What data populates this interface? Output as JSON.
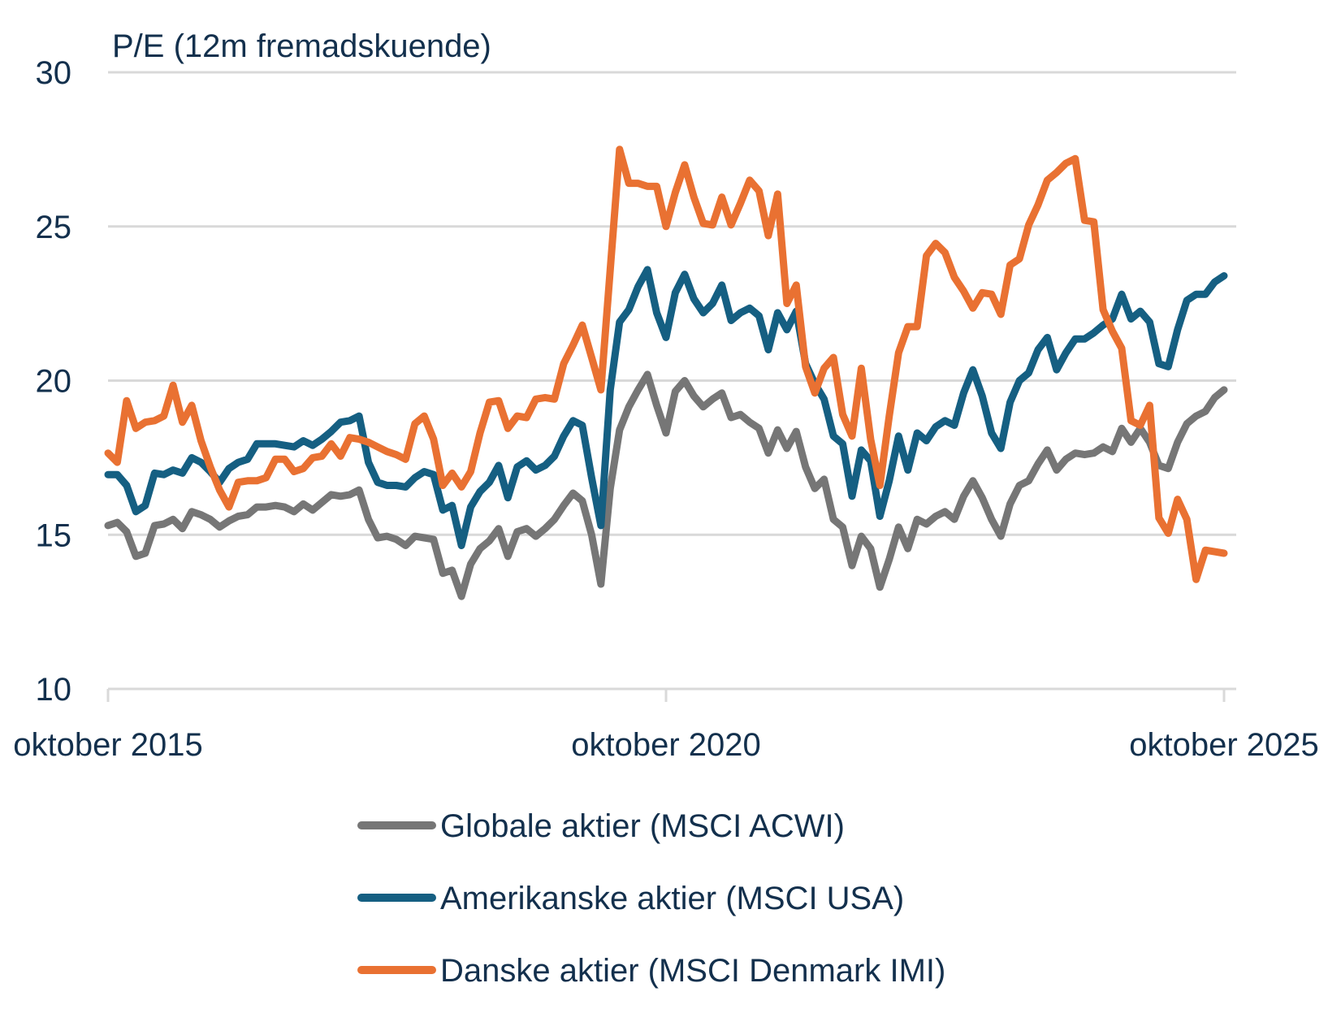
{
  "chart_data": {
    "type": "line",
    "title": "",
    "ylabel": "P/E (12m fremadskuende)",
    "xlabel": "",
    "ylim": [
      10,
      30
    ],
    "yticks": [
      10,
      15,
      20,
      25,
      30
    ],
    "ytick_labels": [
      "10",
      "15",
      "20",
      "25",
      "30"
    ],
    "x_start": "oktober 2015",
    "x_end": "oktober 2025",
    "x_frequency": "monthly",
    "xticks": [
      {
        "index": 0,
        "label": "oktober 2015"
      },
      {
        "index": 60,
        "label": "oktober 2020"
      },
      {
        "index": 120,
        "label": "oktober 2025"
      }
    ],
    "grid": "horizontal",
    "legend_position": "bottom",
    "series": [
      {
        "name": "Globale aktier (MSCI ACWI)",
        "color": "#767676",
        "values": [
          15.3,
          15.4,
          15.1,
          14.3,
          14.4,
          15.3,
          15.35,
          15.5,
          15.2,
          15.75,
          15.65,
          15.5,
          15.25,
          15.45,
          15.6,
          15.65,
          15.9,
          15.9,
          15.95,
          15.9,
          15.75,
          16.0,
          15.8,
          16.05,
          16.3,
          16.25,
          16.3,
          16.45,
          15.5,
          14.9,
          14.95,
          14.85,
          14.65,
          14.95,
          14.9,
          14.85,
          13.75,
          13.85,
          13.0,
          14.05,
          14.55,
          14.8,
          15.2,
          14.3,
          15.1,
          15.2,
          14.95,
          15.2,
          15.5,
          15.95,
          16.35,
          16.1,
          15.0,
          13.4,
          16.5,
          18.4,
          19.15,
          19.7,
          20.2,
          19.2,
          18.3,
          19.65,
          20.0,
          19.5,
          19.15,
          19.4,
          19.6,
          18.8,
          18.9,
          18.65,
          18.45,
          17.65,
          18.4,
          17.8,
          18.35,
          17.2,
          16.5,
          16.8,
          15.5,
          15.25,
          14.0,
          14.95,
          14.55,
          13.3,
          14.2,
          15.25,
          14.55,
          15.5,
          15.35,
          15.6,
          15.75,
          15.5,
          16.25,
          16.75,
          16.2,
          15.5,
          14.95,
          16.0,
          16.6,
          16.75,
          17.3,
          17.75,
          17.1,
          17.45,
          17.65,
          17.6,
          17.65,
          17.85,
          17.7,
          18.45,
          18.0,
          18.45,
          18.0,
          17.25,
          17.15,
          18.0,
          18.6,
          18.85,
          19.0,
          19.45,
          19.7
        ]
      },
      {
        "name": "Amerikanske aktier (MSCI USA)",
        "color": "#155f82",
        "values": [
          16.95,
          16.95,
          16.6,
          15.75,
          15.95,
          17.0,
          16.95,
          17.1,
          17.0,
          17.5,
          17.35,
          17.05,
          16.7,
          17.15,
          17.35,
          17.45,
          17.95,
          17.95,
          17.95,
          17.9,
          17.85,
          18.05,
          17.9,
          18.1,
          18.35,
          18.65,
          18.7,
          18.85,
          17.35,
          16.7,
          16.6,
          16.6,
          16.55,
          16.85,
          17.05,
          16.95,
          15.8,
          15.95,
          14.65,
          15.9,
          16.4,
          16.7,
          17.25,
          16.2,
          17.2,
          17.4,
          17.1,
          17.25,
          17.55,
          18.2,
          18.7,
          18.55,
          16.85,
          15.3,
          19.7,
          21.9,
          22.3,
          23.05,
          23.6,
          22.2,
          21.4,
          22.85,
          23.45,
          22.65,
          22.2,
          22.5,
          23.1,
          21.95,
          22.2,
          22.35,
          22.1,
          21.0,
          22.2,
          21.65,
          22.25,
          20.55,
          19.9,
          19.4,
          18.2,
          17.95,
          16.25,
          17.75,
          17.4,
          15.6,
          16.75,
          18.2,
          17.1,
          18.3,
          18.05,
          18.5,
          18.7,
          18.55,
          19.6,
          20.35,
          19.5,
          18.3,
          17.8,
          19.3,
          20.0,
          20.25,
          21.0,
          21.4,
          20.35,
          20.9,
          21.35,
          21.35,
          21.55,
          21.8,
          22.0,
          22.8,
          22.0,
          22.25,
          21.9,
          20.55,
          20.45,
          21.65,
          22.6,
          22.8,
          22.8,
          23.2,
          23.4
        ]
      },
      {
        "name": "Danske aktier (MSCI Denmark IMI)",
        "color": "#e97132",
        "values": [
          17.65,
          17.35,
          19.35,
          18.45,
          18.65,
          18.7,
          18.85,
          19.85,
          18.65,
          19.2,
          18.05,
          17.2,
          16.45,
          15.9,
          16.7,
          16.75,
          16.75,
          16.85,
          17.45,
          17.45,
          17.05,
          17.15,
          17.5,
          17.55,
          17.95,
          17.55,
          18.15,
          18.1,
          18.0,
          17.85,
          17.7,
          17.6,
          17.45,
          18.6,
          18.85,
          18.1,
          16.6,
          17.0,
          16.55,
          17.05,
          18.3,
          19.3,
          19.35,
          18.45,
          18.85,
          18.8,
          19.4,
          19.45,
          19.4,
          20.55,
          21.15,
          21.8,
          20.75,
          19.7,
          23.6,
          27.5,
          26.4,
          26.4,
          26.3,
          26.3,
          25.0,
          26.1,
          27.0,
          25.95,
          25.1,
          25.05,
          25.95,
          25.05,
          25.75,
          26.5,
          26.15,
          24.7,
          26.05,
          22.5,
          23.1,
          20.45,
          19.6,
          20.4,
          20.75,
          18.9,
          18.2,
          20.4,
          18.1,
          16.6,
          18.85,
          20.9,
          21.75,
          21.75,
          24.05,
          24.45,
          24.15,
          23.35,
          22.9,
          22.35,
          22.85,
          22.8,
          22.15,
          23.75,
          23.95,
          25.05,
          25.7,
          26.5,
          26.75,
          27.05,
          27.2,
          25.2,
          25.15,
          22.3,
          21.6,
          21.05,
          18.7,
          18.55,
          19.2,
          15.55,
          15.05,
          16.15,
          15.5,
          13.55,
          14.5,
          14.45,
          14.4
        ]
      }
    ]
  },
  "colors": {
    "text": "#13304d",
    "grid": "#d9d9d9"
  }
}
